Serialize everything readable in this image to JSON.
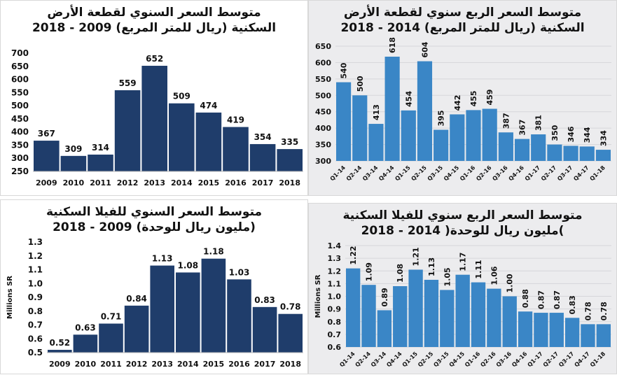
{
  "chart_data": [
    {
      "type": "bar",
      "title_line1": "متوسط السعر السنوي لقطعة الأرض",
      "title_line2": "السكنية (ريال للمتر المربع) 2009 - 2018",
      "categories": [
        "2009",
        "2010",
        "2011",
        "2012",
        "2013",
        "2014",
        "2015",
        "2016",
        "2017",
        "2018"
      ],
      "values": [
        367,
        309,
        314,
        559,
        652,
        509,
        474,
        419,
        354,
        335
      ],
      "value_labels": [
        "367",
        "309",
        "314",
        "559",
        "652",
        "509",
        "474",
        "419",
        "354",
        "335"
      ],
      "ylabel": "",
      "ylim": [
        250,
        700
      ],
      "yticks": [
        "250",
        "300",
        "350",
        "400",
        "450",
        "500",
        "550",
        "600",
        "650",
        "700"
      ],
      "color": "#1f3d6b",
      "grid": false
    },
    {
      "type": "bar",
      "title_line1": "متوسط السعر الربع سنوي لقطعة الأرض",
      "title_line2": "السكنية (ريال للمتر المربع) 2014 - 2018",
      "categories": [
        "Q1-14",
        "Q2-14",
        "Q3-14",
        "Q4-14",
        "Q1-15",
        "Q2-15",
        "Q3-15",
        "Q4-15",
        "Q1-16",
        "Q2-16",
        "Q3-16",
        "Q4-16",
        "Q1-17",
        "Q2-17",
        "Q3-17",
        "Q4-17",
        "Q1-18"
      ],
      "values": [
        540,
        500,
        413,
        618,
        454,
        604,
        395,
        442,
        455,
        459,
        387,
        367,
        381,
        350,
        346,
        344,
        334
      ],
      "value_labels": [
        "540",
        "500",
        "413",
        "618",
        "454",
        "604",
        "395",
        "442",
        "455",
        "459",
        "387",
        "367",
        "381",
        "350",
        "346",
        "344",
        "334"
      ],
      "ylabel": "",
      "ylim": [
        300,
        650
      ],
      "yticks": [
        "300",
        "350",
        "400",
        "450",
        "500",
        "550",
        "600",
        "650"
      ],
      "color": "#3a86c6",
      "grid": true
    },
    {
      "type": "bar",
      "title_line1": "متوسط السعر السنوي للفيلا السكنية",
      "title_line2": "(مليون ريال للوحدة) 2009 - 2018",
      "categories": [
        "2009",
        "2010",
        "2011",
        "2012",
        "2013",
        "2014",
        "2015",
        "2016",
        "2017",
        "2018"
      ],
      "values": [
        0.52,
        0.63,
        0.71,
        0.84,
        1.13,
        1.08,
        1.18,
        1.03,
        0.83,
        0.78
      ],
      "value_labels": [
        "0.52",
        "0.63",
        "0.71",
        "0.84",
        "1.13",
        "1.08",
        "1.18",
        "1.03",
        "0.83",
        "0.78"
      ],
      "ylabel": "Millions SR",
      "ylim": [
        0.5,
        1.3
      ],
      "yticks": [
        "0.5",
        "0.6",
        "0.7",
        "0.8",
        "0.9",
        "1.0",
        "1.1",
        "1.2",
        "1.3"
      ],
      "color": "#1f3d6b",
      "grid": false
    },
    {
      "type": "bar",
      "title_line1": "متوسط السعر الربع سنوي للفيلا السكنية",
      "title_line2": ")مليون ريال للوحدة( 2014 - 2018",
      "categories": [
        "Q1-14",
        "Q2-14",
        "Q3-14",
        "Q4-14",
        "Q1-15",
        "Q2-15",
        "Q3-15",
        "Q4-15",
        "Q1-16",
        "Q2-16",
        "Q3-16",
        "Q4-16",
        "Q1-17",
        "Q2-17",
        "Q3-17",
        "Q4-17",
        "Q1-18"
      ],
      "values": [
        1.22,
        1.09,
        0.89,
        1.08,
        1.21,
        1.13,
        1.05,
        1.17,
        1.11,
        1.06,
        1.0,
        0.88,
        0.87,
        0.87,
        0.83,
        0.78,
        0.78
      ],
      "value_labels": [
        "1.22",
        "1.09",
        "0.89",
        "1.08",
        "1.21",
        "1.13",
        "1.05",
        "1.17",
        "1.11",
        "1.06",
        "1.00",
        "0.88",
        "0.87",
        "0.87",
        "0.83",
        "0.78",
        "0.78"
      ],
      "ylabel": "Millions SR",
      "ylim": [
        0.6,
        1.4
      ],
      "yticks": [
        "0.6",
        "0.7",
        "0.8",
        "0.9",
        "1.0",
        "1.1",
        "1.2",
        "1.3",
        "1.4"
      ],
      "color": "#3a86c6",
      "grid": true
    }
  ]
}
